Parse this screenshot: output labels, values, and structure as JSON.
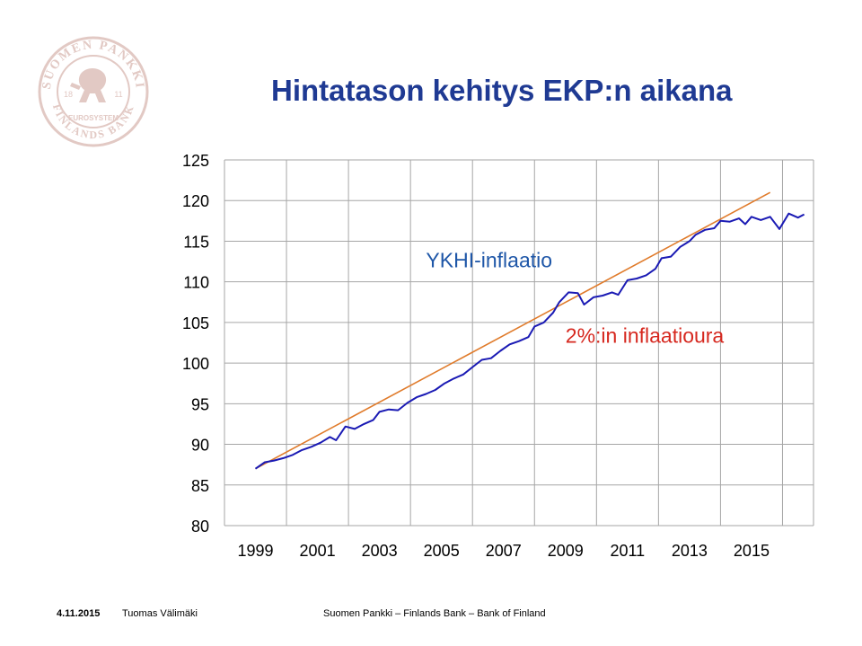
{
  "title": "Hintatason kehitys EKP:n aikana",
  "logo": {
    "ring_text": "SUOMEN PANKKI",
    "bottom_text": "FINLANDS BANK",
    "inner_text": "EUROSYSTEM",
    "year_left": "18",
    "year_right": "11",
    "color": "#e2c9c4"
  },
  "footer": {
    "date": "4.11.2015",
    "author": "Tuomas Välimäki",
    "organization": "Suomen Pankki – Finlands Bank – Bank of Finland"
  },
  "chart_data": {
    "type": "line",
    "title": "Hintatason kehitys EKP:n aikana",
    "ylim": [
      80,
      125
    ],
    "y_ticks": [
      80,
      85,
      90,
      95,
      100,
      105,
      110,
      115,
      120,
      125
    ],
    "x_ticks": [
      "1999",
      "2001",
      "2003",
      "2005",
      "2007",
      "2009",
      "2011",
      "2013",
      "2015"
    ],
    "grid": true,
    "series": [
      {
        "name": "YKHI-inflaatio",
        "color": "#1a1ab4",
        "points": [
          [
            1999.0,
            87.0
          ],
          [
            1999.3,
            87.8
          ],
          [
            1999.6,
            88.0
          ],
          [
            1999.9,
            88.3
          ],
          [
            2000.2,
            88.7
          ],
          [
            2000.5,
            89.3
          ],
          [
            2000.8,
            89.7
          ],
          [
            2001.1,
            90.2
          ],
          [
            2001.4,
            90.9
          ],
          [
            2001.6,
            90.5
          ],
          [
            2001.9,
            92.2
          ],
          [
            2002.2,
            91.9
          ],
          [
            2002.5,
            92.5
          ],
          [
            2002.8,
            93.0
          ],
          [
            2003.0,
            94.0
          ],
          [
            2003.3,
            94.3
          ],
          [
            2003.6,
            94.2
          ],
          [
            2003.9,
            95.1
          ],
          [
            2004.2,
            95.8
          ],
          [
            2004.5,
            96.2
          ],
          [
            2004.8,
            96.7
          ],
          [
            2005.1,
            97.5
          ],
          [
            2005.4,
            98.1
          ],
          [
            2005.7,
            98.6
          ],
          [
            2006.0,
            99.5
          ],
          [
            2006.3,
            100.4
          ],
          [
            2006.6,
            100.6
          ],
          [
            2006.9,
            101.5
          ],
          [
            2007.2,
            102.3
          ],
          [
            2007.5,
            102.7
          ],
          [
            2007.8,
            103.2
          ],
          [
            2008.0,
            104.5
          ],
          [
            2008.3,
            105.0
          ],
          [
            2008.6,
            106.2
          ],
          [
            2008.8,
            107.5
          ],
          [
            2009.1,
            108.7
          ],
          [
            2009.4,
            108.6
          ],
          [
            2009.6,
            107.2
          ],
          [
            2009.9,
            108.1
          ],
          [
            2010.2,
            108.3
          ],
          [
            2010.5,
            108.7
          ],
          [
            2010.7,
            108.4
          ],
          [
            2011.0,
            110.2
          ],
          [
            2011.3,
            110.4
          ],
          [
            2011.6,
            110.8
          ],
          [
            2011.9,
            111.6
          ],
          [
            2012.1,
            112.9
          ],
          [
            2012.4,
            113.1
          ],
          [
            2012.7,
            114.3
          ],
          [
            2013.0,
            115.0
          ],
          [
            2013.2,
            115.8
          ],
          [
            2013.5,
            116.4
          ],
          [
            2013.8,
            116.6
          ],
          [
            2014.0,
            117.5
          ],
          [
            2014.3,
            117.4
          ],
          [
            2014.6,
            117.8
          ],
          [
            2014.8,
            117.1
          ],
          [
            2015.0,
            118.0
          ],
          [
            2015.3,
            117.6
          ],
          [
            2015.6,
            118.0
          ],
          [
            2015.9,
            116.5
          ],
          [
            2016.2,
            118.4
          ],
          [
            2016.5,
            117.9
          ],
          [
            2016.7,
            118.3
          ]
        ]
      },
      {
        "name": "2%:in inflaatioura",
        "color": "#e07b2b",
        "points": [
          [
            1999.0,
            87.0
          ],
          [
            2015.6,
            121.0
          ]
        ]
      }
    ],
    "annotations": [
      {
        "text": "YKHI-inflaatio",
        "x": 2004.5,
        "y": 111.8
      },
      {
        "text": "2%:in inflaatioura",
        "x": 2009.0,
        "y": 102.5
      }
    ]
  }
}
